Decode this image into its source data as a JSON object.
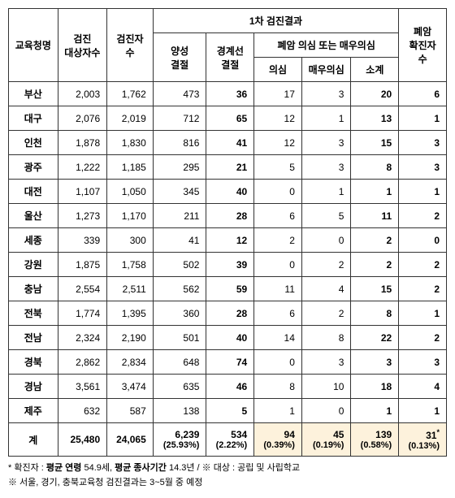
{
  "header": {
    "office": "교육청명",
    "target_count": "검진\n대상자수",
    "tested_count": "검진자\n수",
    "first_result": "1차 검진결과",
    "positive_nodule": "양성\n결절",
    "borderline_nodule": "경계선\n결절",
    "cancer_suspect_group": "폐암 의심 또는 매우의심",
    "suspect": "의심",
    "strong_suspect": "매우의심",
    "subtotal": "소계",
    "confirmed": "폐암\n확진자\n수"
  },
  "rows": [
    {
      "office": "부산",
      "target": "2,003",
      "tested": "1,762",
      "pos": "473",
      "border": "36",
      "susp": "17",
      "strong": "3",
      "sub": "20",
      "conf": "6"
    },
    {
      "office": "대구",
      "target": "2,076",
      "tested": "2,019",
      "pos": "712",
      "border": "65",
      "susp": "12",
      "strong": "1",
      "sub": "13",
      "conf": "1"
    },
    {
      "office": "인천",
      "target": "1,878",
      "tested": "1,830",
      "pos": "816",
      "border": "41",
      "susp": "12",
      "strong": "3",
      "sub": "15",
      "conf": "3"
    },
    {
      "office": "광주",
      "target": "1,222",
      "tested": "1,185",
      "pos": "295",
      "border": "21",
      "susp": "5",
      "strong": "3",
      "sub": "8",
      "conf": "3"
    },
    {
      "office": "대전",
      "target": "1,107",
      "tested": "1,050",
      "pos": "345",
      "border": "40",
      "susp": "0",
      "strong": "1",
      "sub": "1",
      "conf": "1"
    },
    {
      "office": "울산",
      "target": "1,273",
      "tested": "1,170",
      "pos": "211",
      "border": "28",
      "susp": "6",
      "strong": "5",
      "sub": "11",
      "conf": "2"
    },
    {
      "office": "세종",
      "target": "339",
      "tested": "300",
      "pos": "41",
      "border": "12",
      "susp": "2",
      "strong": "0",
      "sub": "2",
      "conf": "0"
    },
    {
      "office": "강원",
      "target": "1,875",
      "tested": "1,758",
      "pos": "502",
      "border": "39",
      "susp": "0",
      "strong": "2",
      "sub": "2",
      "conf": "2"
    },
    {
      "office": "충남",
      "target": "2,554",
      "tested": "2,511",
      "pos": "562",
      "border": "59",
      "susp": "11",
      "strong": "4",
      "sub": "15",
      "conf": "2"
    },
    {
      "office": "전북",
      "target": "1,774",
      "tested": "1,395",
      "pos": "360",
      "border": "28",
      "susp": "6",
      "strong": "2",
      "sub": "8",
      "conf": "1"
    },
    {
      "office": "전남",
      "target": "2,324",
      "tested": "2,190",
      "pos": "501",
      "border": "40",
      "susp": "14",
      "strong": "8",
      "sub": "22",
      "conf": "2"
    },
    {
      "office": "경북",
      "target": "2,862",
      "tested": "2,834",
      "pos": "648",
      "border": "74",
      "susp": "0",
      "strong": "3",
      "sub": "3",
      "conf": "3"
    },
    {
      "office": "경남",
      "target": "3,561",
      "tested": "3,474",
      "pos": "635",
      "border": "46",
      "susp": "8",
      "strong": "10",
      "sub": "18",
      "conf": "4"
    },
    {
      "office": "제주",
      "target": "632",
      "tested": "587",
      "pos": "138",
      "border": "5",
      "susp": "1",
      "strong": "0",
      "sub": "1",
      "conf": "1"
    }
  ],
  "totals": {
    "label": "계",
    "target": "25,480",
    "tested": "24,065",
    "pos": "6,239",
    "pos_pct": "(25.93%)",
    "border": "534",
    "border_pct": "(2.22%)",
    "susp": "94",
    "susp_pct": "(0.39%)",
    "strong": "45",
    "strong_pct": "(0.19%)",
    "sub": "139",
    "sub_pct": "(0.58%)",
    "conf": "31",
    "conf_sup": "*",
    "conf_pct": "(0.13%)"
  },
  "footnotes": {
    "line1_prefix": "* 확진자 : ",
    "line1_b1": "평균 연령",
    "line1_v1": " 54.9세, ",
    "line1_b2": "평균 종사기간",
    "line1_v2": " 14.3년 /  ※ 대상 : 공립 및 사립학교",
    "line2": "※ 서울, 경기, 충북교육청 검진결과는 3~5월 중 예정"
  }
}
